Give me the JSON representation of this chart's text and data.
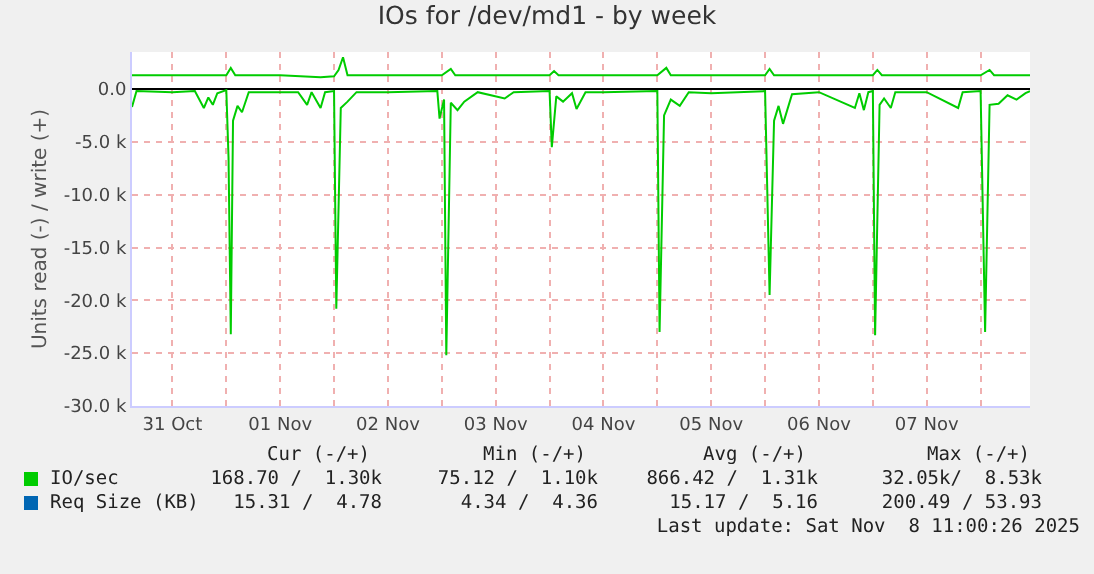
{
  "chart_data": {
    "type": "line",
    "title": "IOs for /dev/md1 - by week",
    "ylabel": "Units read (-) / write (+)",
    "xlim": [
      "2025-10-31T03:00",
      "2025-11-08T11:00"
    ],
    "xticks": [
      {
        "value": "2025-10-31T12:00",
        "label": "31 Oct"
      },
      {
        "value": "2025-11-01T00:00",
        "label": null
      },
      {
        "value": "2025-11-01T12:00",
        "label": "01 Nov"
      },
      {
        "value": "2025-11-02T00:00",
        "label": null
      },
      {
        "value": "2025-11-02T12:00",
        "label": "02 Nov"
      },
      {
        "value": "2025-11-03T00:00",
        "label": null
      },
      {
        "value": "2025-11-03T12:00",
        "label": "03 Nov"
      },
      {
        "value": "2025-11-04T00:00",
        "label": null
      },
      {
        "value": "2025-11-04T12:00",
        "label": "04 Nov"
      },
      {
        "value": "2025-11-05T00:00",
        "label": null
      },
      {
        "value": "2025-11-05T12:00",
        "label": "05 Nov"
      },
      {
        "value": "2025-11-06T00:00",
        "label": null
      },
      {
        "value": "2025-11-06T12:00",
        "label": "06 Nov"
      },
      {
        "value": "2025-11-07T00:00",
        "label": null
      },
      {
        "value": "2025-11-07T12:00",
        "label": "07 Nov"
      },
      {
        "value": "2025-11-08T00:00",
        "label": null
      }
    ],
    "ylim": [
      -30000,
      3500
    ],
    "yticks": [
      {
        "value": 0,
        "label": "0.0"
      },
      {
        "value": -5000,
        "label": "-5.0 k"
      },
      {
        "value": -10000,
        "label": "-10.0 k"
      },
      {
        "value": -15000,
        "label": "-15.0 k"
      },
      {
        "value": -20000,
        "label": "-20.0 k"
      },
      {
        "value": -25000,
        "label": "-25.0 k"
      },
      {
        "value": -30000,
        "label": "-30.0 k"
      }
    ],
    "grid": true,
    "legend": "bottom",
    "marker": "none",
    "line_style": "solid",
    "series": [
      {
        "name": "IO/sec",
        "color": "#00cc00",
        "x": [
          "2025-10-31T03:00",
          "2025-10-31T12:00",
          "2025-11-01T00:00",
          "2025-11-01T01:00",
          "2025-11-01T02:00",
          "2025-11-01T12:00",
          "2025-11-01T21:00",
          "2025-11-02T00:00",
          "2025-11-02T01:00",
          "2025-11-02T02:00",
          "2025-11-02T03:00",
          "2025-11-02T12:00",
          "2025-11-03T00:00",
          "2025-11-03T02:00",
          "2025-11-03T03:00",
          "2025-11-03T12:00",
          "2025-11-04T00:00",
          "2025-11-04T01:00",
          "2025-11-04T02:00",
          "2025-11-04T12:00",
          "2025-11-05T00:00",
          "2025-11-05T02:00",
          "2025-11-05T03:00",
          "2025-11-05T12:00",
          "2025-11-06T00:00",
          "2025-11-06T01:00",
          "2025-11-06T02:00",
          "2025-11-06T12:00",
          "2025-11-07T00:00",
          "2025-11-07T01:00",
          "2025-11-07T02:00",
          "2025-11-07T12:00",
          "2025-11-08T00:00",
          "2025-11-08T02:00",
          "2025-11-08T03:00",
          "2025-11-08T11:00"
        ],
        "values": [
          1300,
          1300,
          1300,
          2000,
          1300,
          1300,
          1100,
          1200,
          1800,
          3000,
          1300,
          1300,
          1300,
          1900,
          1300,
          1300,
          1300,
          1700,
          1300,
          1300,
          1300,
          2000,
          1300,
          1300,
          1300,
          1900,
          1300,
          1300,
          1300,
          1800,
          1300,
          1300,
          1300,
          1800,
          1300,
          1300
        ]
      },
      {
        "color": "#00cc00",
        "x": [
          "2025-10-31T03:00",
          "2025-10-31T04:00",
          "2025-10-31T12:00",
          "2025-10-31T17:00",
          "2025-10-31T19:00",
          "2025-10-31T20:00",
          "2025-10-31T21:00",
          "2025-10-31T22:00",
          "2025-11-01T00:00",
          "2025-11-01T00:30",
          "2025-11-01T01:00",
          "2025-11-01T01:30",
          "2025-11-01T02:30",
          "2025-11-01T03:30",
          "2025-11-01T05:00",
          "2025-11-01T16:00",
          "2025-11-01T18:00",
          "2025-11-01T19:00",
          "2025-11-01T21:00",
          "2025-11-01T22:00",
          "2025-11-02T00:00",
          "2025-11-02T00:30",
          "2025-11-02T01:30",
          "2025-11-02T03:00",
          "2025-11-02T05:00",
          "2025-11-02T12:00",
          "2025-11-02T23:00",
          "2025-11-02T23:30",
          "2025-11-03T00:30",
          "2025-11-03T01:00",
          "2025-11-03T02:00",
          "2025-11-03T03:30",
          "2025-11-03T05:00",
          "2025-11-03T08:00",
          "2025-11-03T14:00",
          "2025-11-03T16:00",
          "2025-11-04T00:00",
          "2025-11-04T00:30",
          "2025-11-04T01:30",
          "2025-11-04T03:00",
          "2025-11-04T05:00",
          "2025-11-04T06:00",
          "2025-11-04T08:00",
          "2025-11-04T12:00",
          "2025-11-05T00:00",
          "2025-11-05T00:30",
          "2025-11-05T01:30",
          "2025-11-05T03:00",
          "2025-11-05T05:00",
          "2025-11-05T07:00",
          "2025-11-05T12:00",
          "2025-11-06T00:00",
          "2025-11-06T01:00",
          "2025-11-06T02:00",
          "2025-11-06T03:00",
          "2025-11-06T04:00",
          "2025-11-06T06:00",
          "2025-11-06T12:00",
          "2025-11-06T20:00",
          "2025-11-06T21:00",
          "2025-11-06T22:00",
          "2025-11-06T23:00",
          "2025-11-07T00:00",
          "2025-11-07T00:30",
          "2025-11-07T01:30",
          "2025-11-07T02:30",
          "2025-11-07T04:00",
          "2025-11-07T05:00",
          "2025-11-07T12:00",
          "2025-11-07T19:00",
          "2025-11-07T20:00",
          "2025-11-08T00:00",
          "2025-11-08T01:00",
          "2025-11-08T02:00",
          "2025-11-08T04:00",
          "2025-11-08T06:00",
          "2025-11-08T08:00",
          "2025-11-08T10:00",
          "2025-11-08T11:00"
        ],
        "values": [
          -1700,
          -200,
          -300,
          -200,
          -1800,
          -800,
          -1500,
          -400,
          -100,
          -6500,
          -23200,
          -3000,
          -1600,
          -2200,
          -300,
          -300,
          -1500,
          -300,
          -1800,
          -300,
          -200,
          -20800,
          -1800,
          -1200,
          -300,
          -300,
          -200,
          -2800,
          -1000,
          -25200,
          -1300,
          -2000,
          -1200,
          -300,
          -900,
          -300,
          -200,
          -5500,
          -700,
          -1200,
          -400,
          -1900,
          -300,
          -300,
          -200,
          -23000,
          -2500,
          -1000,
          -1600,
          -300,
          -400,
          -200,
          -19500,
          -3000,
          -1600,
          -3300,
          -500,
          -300,
          -1800,
          -400,
          -2000,
          -300,
          -200,
          -23300,
          -1500,
          -900,
          -1800,
          -300,
          -300,
          -1800,
          -300,
          -200,
          -23000,
          -1500,
          -1400,
          -600,
          -1000,
          -400,
          -200
        ]
      },
      {
        "name": "Req Size (KB)",
        "color": "#0066b3"
      }
    ],
    "annotations": [
      "Cur (-/+)",
      "Min (-/+)",
      "Avg (-/+)",
      "Max (-/+)",
      "168.70 /  1.30k",
      "75.12 /  1.10k",
      "866.42 /  1.31k",
      "32.05k/  8.53k",
      "15.31 /  4.78",
      "4.34 /  4.36",
      "15.17 /  5.16",
      "200.49 / 53.93",
      "Last update: Sat Nov  8 11:00:26 2025"
    ]
  }
}
